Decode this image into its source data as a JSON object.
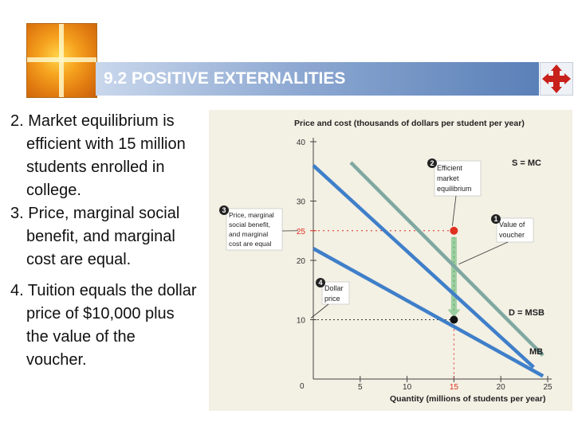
{
  "slide": {
    "title": "9.2 POSITIVE EXTERNALITIES",
    "bullets": [
      {
        "num": "2.",
        "text": "Market equilibrium is efficient with 15 million students enrolled in college."
      },
      {
        "num": "3.",
        "text": "Price, marginal social benefit, and marginal cost are equal."
      },
      {
        "num": "4.",
        "text": "Tuition equals the dollar price of $10,000 plus the value of the voucher."
      }
    ]
  },
  "colors": {
    "supply_line": "#7fa8a0",
    "demand_line": "#3f7fc9",
    "mb_line": "#3f7fc9",
    "equilibrium_dot": "#e03020",
    "price_dot": "#111111",
    "voucher_arrow": "#9ccfa0",
    "chart_bg": "#f3f0e4"
  },
  "chart_data": {
    "type": "line",
    "ylabel": "Price and cost (thousands of dollars per student per year)",
    "xlabel": "Quantity (millions of students per year)",
    "xlim": [
      0,
      25
    ],
    "ylim": [
      0,
      40
    ],
    "x_ticks": [
      "5",
      "10",
      "15",
      "20",
      "25"
    ],
    "y_ticks": [
      "10",
      "20",
      "30",
      "40"
    ],
    "origin_label": "0",
    "highlight_x_tick": "15",
    "highlight_y_tick": "25",
    "series": [
      {
        "name": "S = MC",
        "points": [
          [
            4,
            36.5
          ],
          [
            24.5,
            4
          ]
        ]
      },
      {
        "name": "D = MSB",
        "points": [
          [
            0,
            36
          ],
          [
            23.5,
            2
          ]
        ]
      },
      {
        "name": "MB",
        "points": [
          [
            0,
            22
          ],
          [
            24.5,
            0.5
          ]
        ]
      }
    ],
    "equilibrium": {
      "x": 15,
      "y": 25
    },
    "price_point": {
      "x": 15,
      "y": 10
    },
    "annotations": [
      {
        "num": "2",
        "lines": [
          "Efficient",
          "market",
          "equilibrium"
        ]
      },
      {
        "num": "1",
        "lines": [
          "Value of",
          "voucher"
        ]
      },
      {
        "num": "3",
        "lines": [
          "Price, marginal",
          "social benefit,",
          "and marginal",
          "cost are equal"
        ]
      },
      {
        "num": "4",
        "lines": [
          "Dollar",
          "price"
        ]
      }
    ]
  }
}
